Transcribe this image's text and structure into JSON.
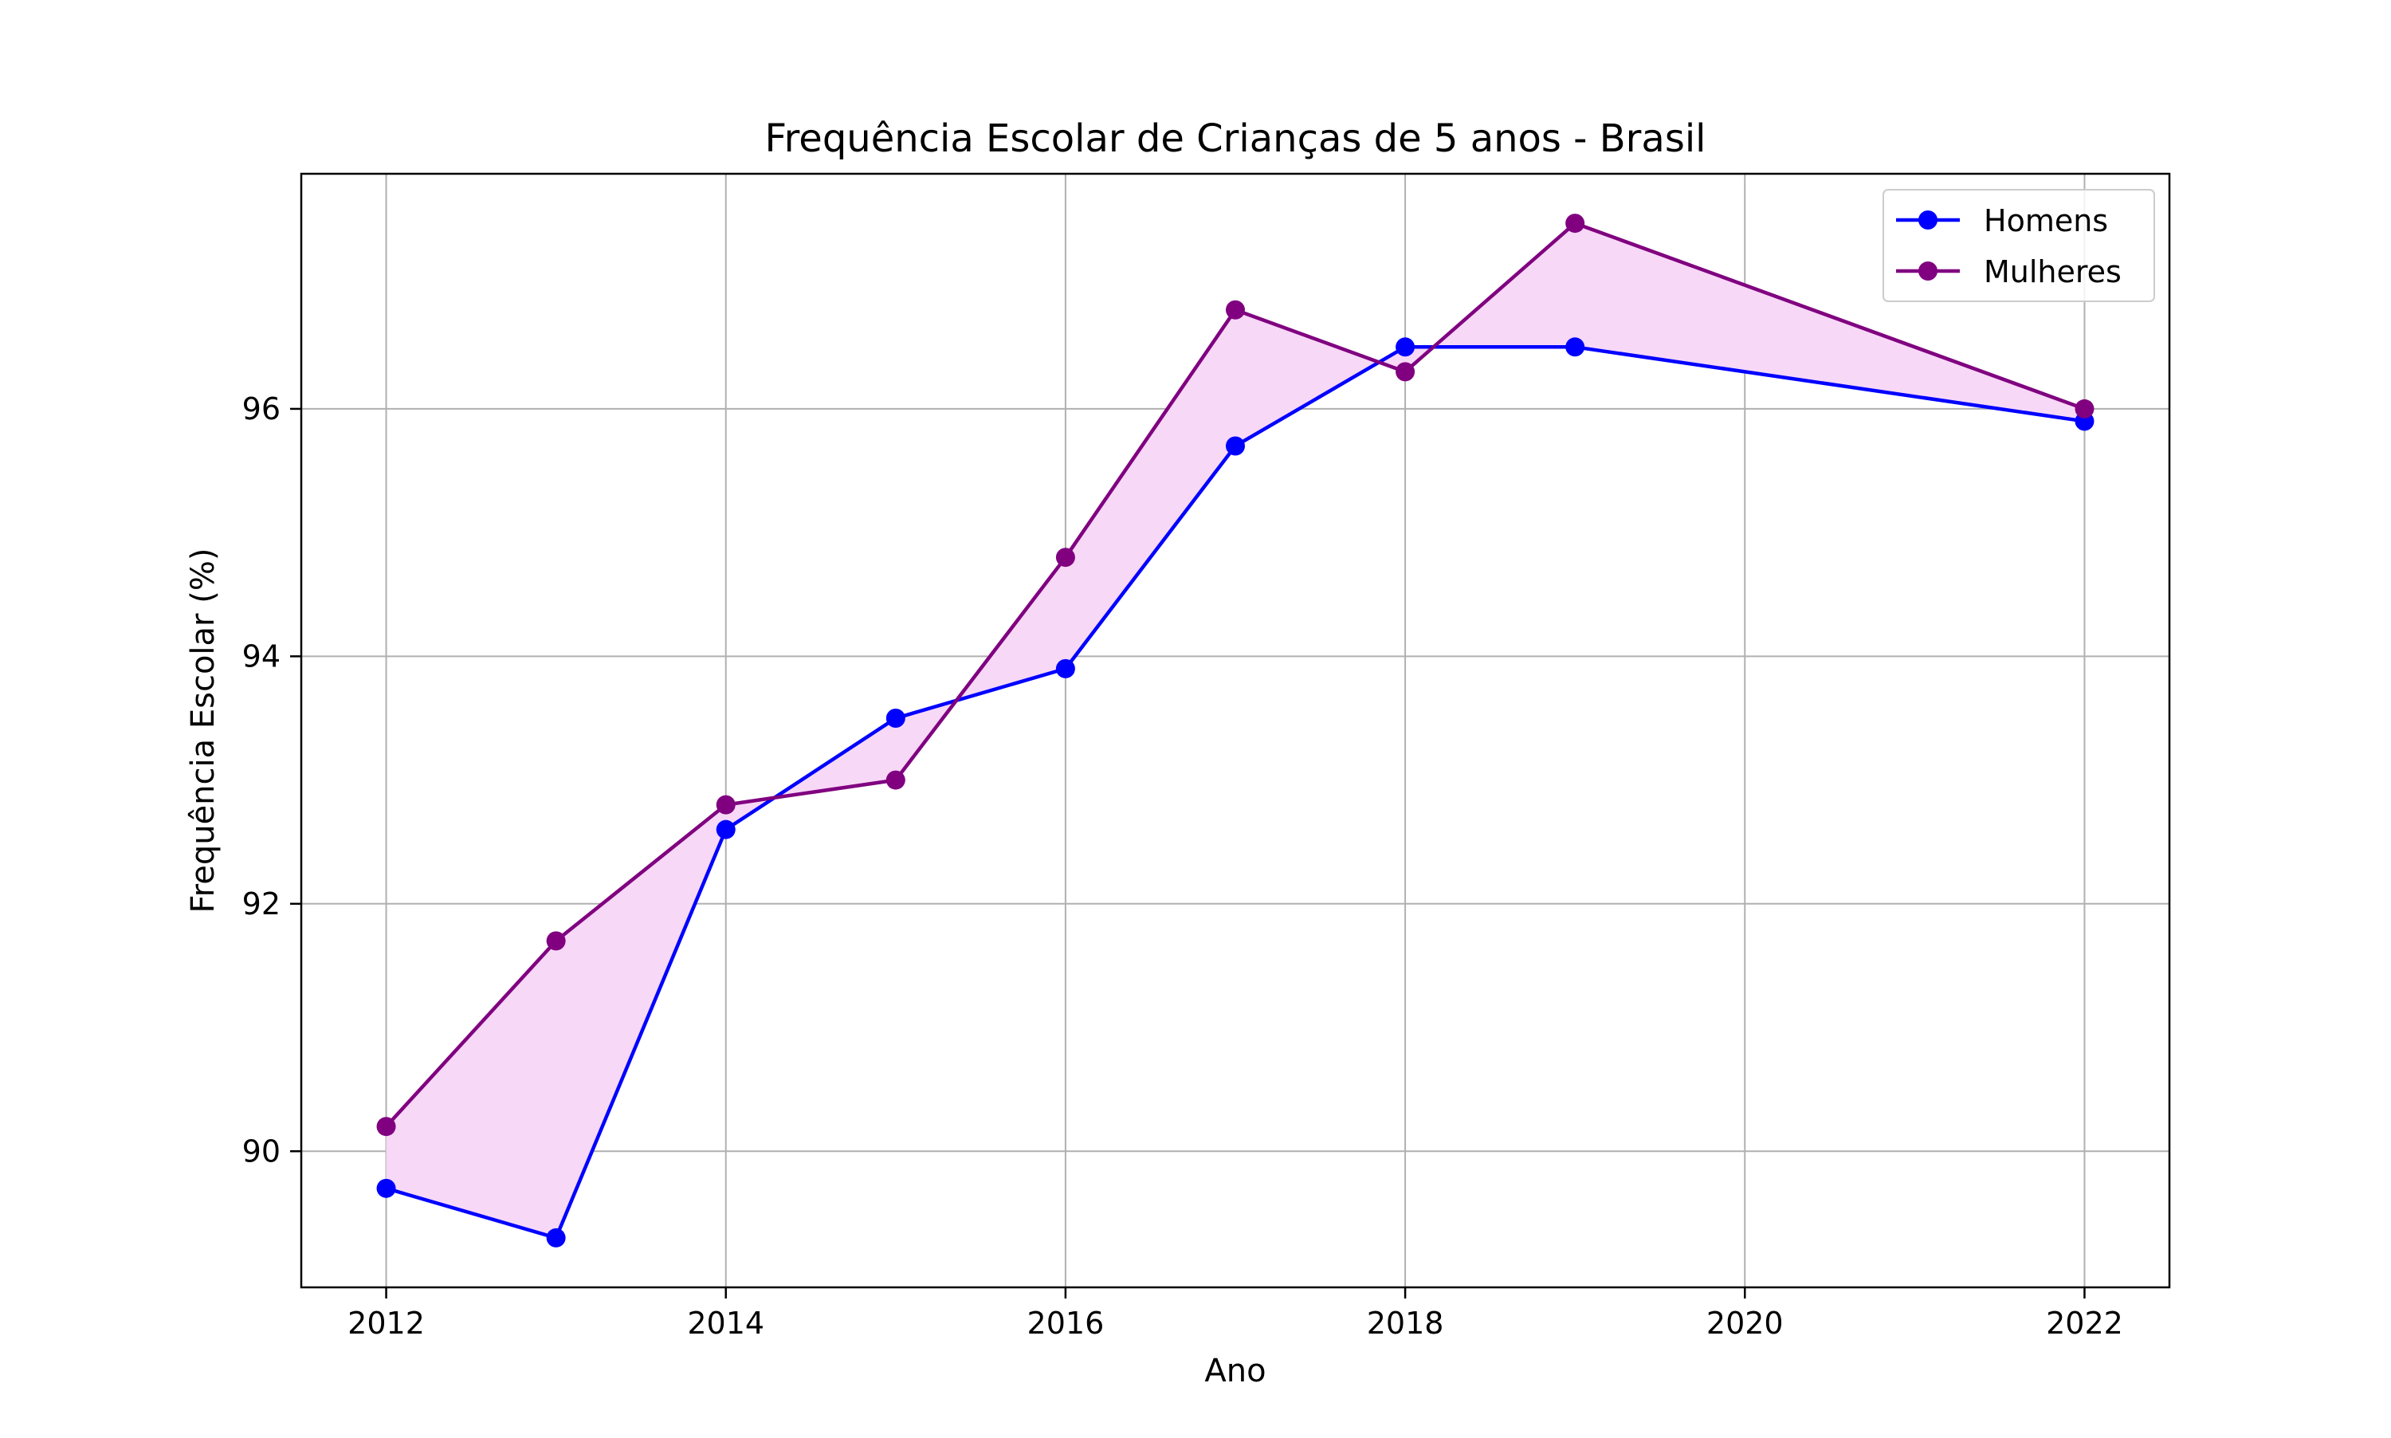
{
  "chart_data": {
    "type": "line",
    "title": "Frequência Escolar de Crianças de 5 anos - Brasil",
    "xlabel": "Ano",
    "ylabel": "Frequência Escolar (%)",
    "x": [
      2012,
      2013,
      2014,
      2015,
      2016,
      2017,
      2018,
      2019,
      2022
    ],
    "xlim": [
      2011.5,
      2022.5
    ],
    "ylim": [
      88.9,
      97.9
    ],
    "xticks": [
      2012,
      2014,
      2016,
      2018,
      2020,
      2022
    ],
    "yticks": [
      90,
      92,
      94,
      96
    ],
    "xtick_labels": [
      "2012",
      "2014",
      "2016",
      "2018",
      "2020",
      "2022"
    ],
    "ytick_labels": [
      "90",
      "92",
      "94",
      "96"
    ],
    "grid": true,
    "legend_position": "top-right",
    "fill_between": {
      "color": "#f7d8f7"
    },
    "series": [
      {
        "name": "Homens",
        "color": "#0000ff",
        "values": [
          89.7,
          89.3,
          92.6,
          93.5,
          93.9,
          95.7,
          96.5,
          96.5,
          95.9
        ]
      },
      {
        "name": "Mulheres",
        "color": "#800080",
        "values": [
          90.2,
          91.7,
          92.8,
          93.0,
          94.8,
          96.8,
          96.3,
          97.5,
          96.0
        ]
      }
    ]
  }
}
